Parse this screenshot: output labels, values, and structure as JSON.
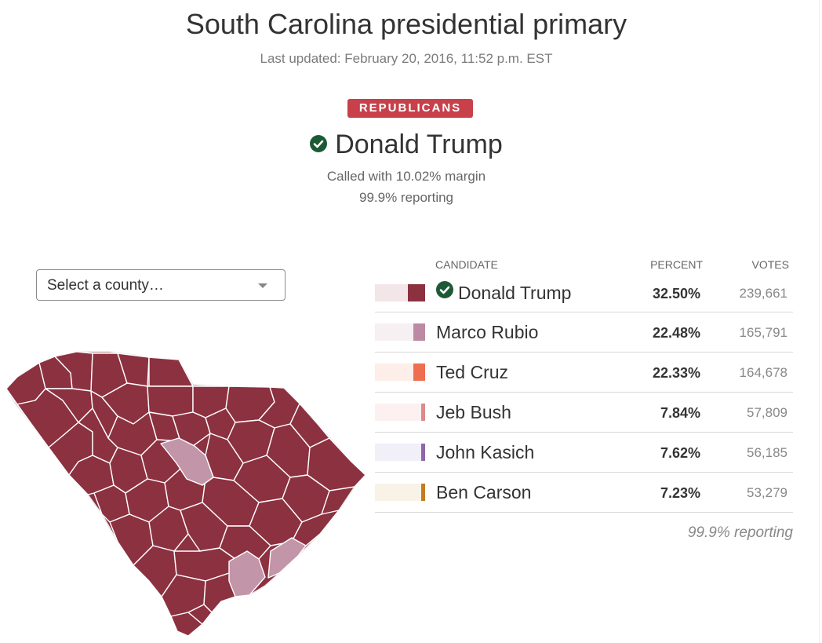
{
  "header": {
    "title": "South Carolina presidential primary",
    "updated": "Last updated: February 20, 2016, 11:52 p.m. EST"
  },
  "race": {
    "party": "REPUBLICANS",
    "winner": "Donald Trump",
    "called": "Called with 10.02% margin",
    "reporting": "99.9% reporting"
  },
  "county_select": {
    "label": "Select a county…"
  },
  "table": {
    "headers": {
      "candidate": "CANDIDATE",
      "percent": "PERCENT",
      "votes": "VOTES"
    },
    "rows": [
      {
        "name": "Donald Trump",
        "percent": "32.50%",
        "votes": "239,661",
        "share": 32.5,
        "color": "#8c3140",
        "light": "#f3e6e8",
        "winner": true
      },
      {
        "name": "Marco Rubio",
        "percent": "22.48%",
        "votes": "165,791",
        "share": 22.48,
        "color": "#bd8aa3",
        "light": "#f6f0f2",
        "winner": false
      },
      {
        "name": "Ted Cruz",
        "percent": "22.33%",
        "votes": "164,678",
        "share": 22.33,
        "color": "#ee6e4f",
        "light": "#fdeeea",
        "winner": false
      },
      {
        "name": "Jeb Bush",
        "percent": "7.84%",
        "votes": "57,809",
        "share": 7.84,
        "color": "#dc8b8a",
        "light": "#fcf0f0",
        "winner": false
      },
      {
        "name": "John Kasich",
        "percent": "7.62%",
        "votes": "56,185",
        "share": 7.62,
        "color": "#8e68a9",
        "light": "#f1eff8",
        "winner": false
      },
      {
        "name": "Ben Carson",
        "percent": "7.23%",
        "votes": "53,279",
        "share": 7.23,
        "color": "#c27d1f",
        "light": "#f8f2e7",
        "winner": false
      }
    ],
    "reporting": "99.9% reporting"
  },
  "map": {
    "trump_color": "#8c3140",
    "rubio_color": "#c395a9",
    "border_color": "#ffffff"
  },
  "colors": {
    "badge": "#c8404a",
    "check": "#1c5a36"
  }
}
